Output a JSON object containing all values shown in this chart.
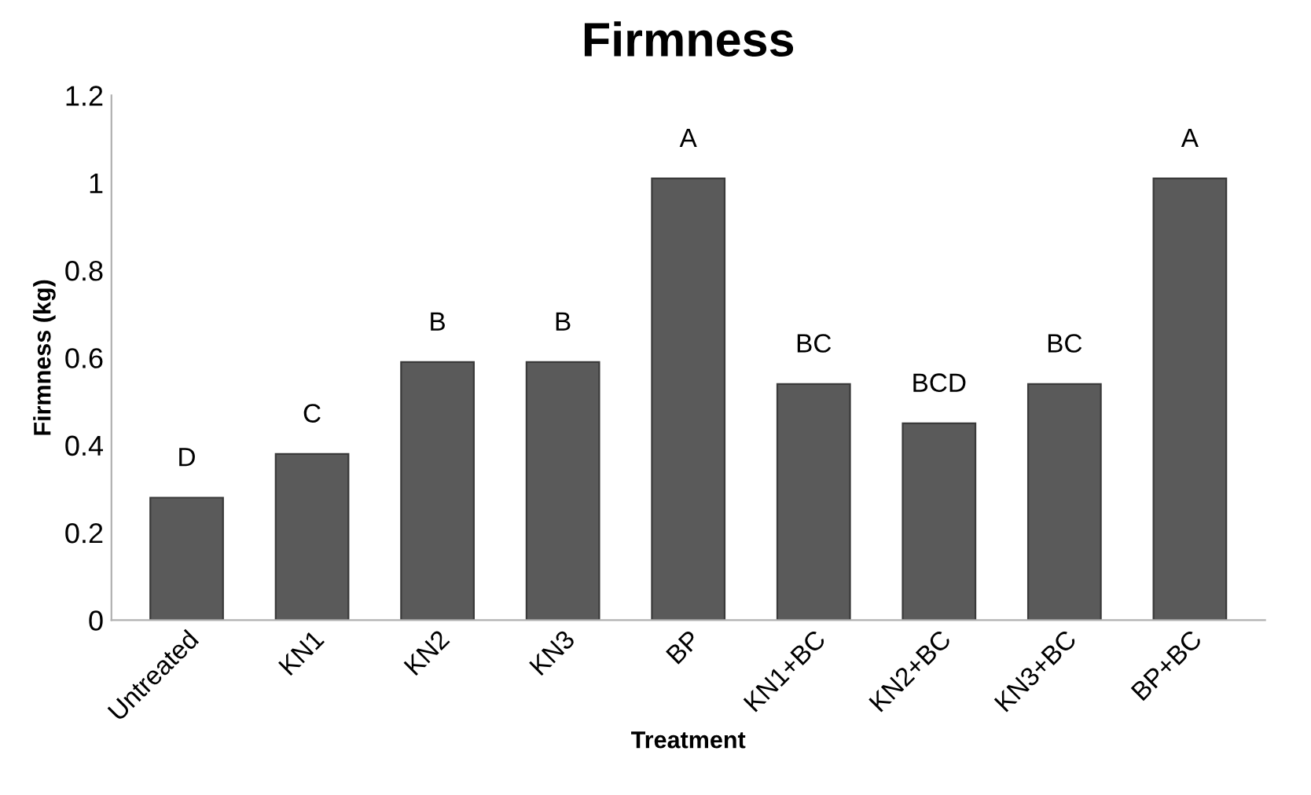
{
  "chart_data": {
    "type": "bar",
    "title": "Firmness",
    "xlabel": "Treatment",
    "ylabel": "Firmness (kg)",
    "categories": [
      "Untreated",
      "KN1",
      "KN2",
      "KN3",
      "BP",
      "KN1+BC",
      "KN2+BC",
      "KN3+BC",
      "BP+BC"
    ],
    "values": [
      0.28,
      0.38,
      0.59,
      0.59,
      1.01,
      0.54,
      0.45,
      0.54,
      1.01
    ],
    "color": "#5a5a5a",
    "ylim": [
      0,
      1.2
    ],
    "yticks": [
      0,
      0.2,
      0.4,
      0.6,
      0.8,
      1,
      1.2
    ],
    "grid": false,
    "legend": false,
    "annotations": [
      {
        "text": "D",
        "x": "Untreated",
        "y": 0.28
      },
      {
        "text": "C",
        "x": "KN1",
        "y": 0.38
      },
      {
        "text": "B",
        "x": "KN2",
        "y": 0.59
      },
      {
        "text": "B",
        "x": "KN3",
        "y": 0.59
      },
      {
        "text": "A",
        "x": "BP",
        "y": 1.01
      },
      {
        "text": "BC",
        "x": "KN1+BC",
        "y": 0.54
      },
      {
        "text": "BCD",
        "x": "KN2+BC",
        "y": 0.45
      },
      {
        "text": "BC",
        "x": "KN3+BC",
        "y": 0.54
      },
      {
        "text": "A",
        "x": "BP+BC",
        "y": 1.01
      }
    ]
  }
}
